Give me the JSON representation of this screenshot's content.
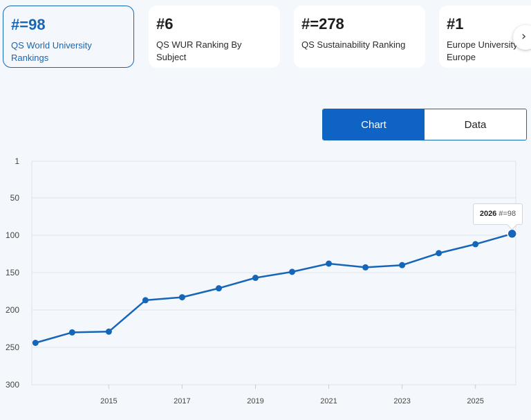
{
  "cards": [
    {
      "rank": "#=98",
      "name": "QS World University Rankings",
      "active": true
    },
    {
      "rank": "#6",
      "name": "QS WUR Ranking By Subject",
      "active": false
    },
    {
      "rank": "#=278",
      "name": "QS Sustainability Ranking",
      "active": false
    },
    {
      "rank": "#1",
      "name": "Europe University Southern Europe",
      "active": false
    }
  ],
  "next_icon": "chevron-right-icon",
  "toggle": {
    "chart_label": "Chart",
    "data_label": "Data"
  },
  "colors": {
    "accent": "#1565b8",
    "line": "#1565b8",
    "grid": "#dde3ea"
  },
  "tooltip": {
    "year": "2026",
    "rank": "#=98"
  },
  "chart_data": {
    "type": "line",
    "title": "",
    "xlabel": "",
    "ylabel": "",
    "y_inverted": true,
    "ylim": [
      1,
      300
    ],
    "y_ticks": [
      1,
      50,
      100,
      150,
      200,
      250,
      300
    ],
    "x_ticks": [
      2015,
      2017,
      2019,
      2021,
      2023,
      2025
    ],
    "xlim": [
      2012.9,
      2026.1
    ],
    "grid": true,
    "series": [
      {
        "points": [
          {
            "x": 2013,
            "y": 244
          },
          {
            "x": 2014,
            "y": 230
          },
          {
            "x": 2015,
            "y": 229
          },
          {
            "x": 2016,
            "y": 187
          },
          {
            "x": 2017,
            "y": 183
          },
          {
            "x": 2018,
            "y": 171
          },
          {
            "x": 2019,
            "y": 157
          },
          {
            "x": 2020,
            "y": 149
          },
          {
            "x": 2021,
            "y": 138
          },
          {
            "x": 2022,
            "y": 143
          },
          {
            "x": 2023,
            "y": 140
          },
          {
            "x": 2024,
            "y": 124
          },
          {
            "x": 2025,
            "y": 112
          },
          {
            "x": 2026,
            "y": 98
          }
        ]
      }
    ],
    "highlight": {
      "x": 2026,
      "y": 98
    }
  }
}
